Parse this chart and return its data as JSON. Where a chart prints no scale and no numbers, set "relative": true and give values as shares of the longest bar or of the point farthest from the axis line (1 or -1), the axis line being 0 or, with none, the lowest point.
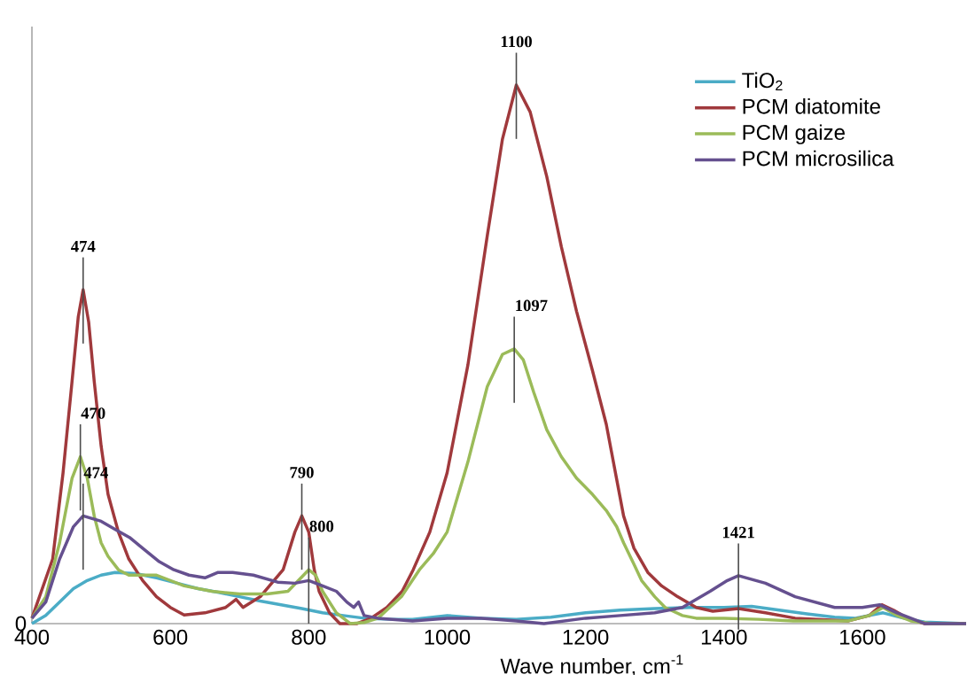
{
  "chart_data": {
    "type": "line",
    "relative": true,
    "xlabel": "Wave number, cm$^{-1}$",
    "xlim": [
      400,
      1750
    ],
    "xticks": [
      400,
      600,
      800,
      1000,
      1200,
      1400,
      1600
    ],
    "legend": "top right",
    "series": [
      {
        "name": "TiO$_{2}$",
        "color": "#4bacc6",
        "x": [
          400,
          420,
          440,
          460,
          480,
          500,
          520,
          550,
          580,
          610,
          640,
          670,
          700,
          730,
          760,
          790,
          820,
          850,
          880,
          920,
          950,
          1000,
          1050,
          1100,
          1150,
          1200,
          1250,
          1300,
          1350,
          1400,
          1440,
          1480,
          1520,
          1560,
          1590,
          1630,
          1660,
          1690,
          1750
        ],
        "values": [
          0,
          0.015,
          0.04,
          0.065,
          0.08,
          0.09,
          0.095,
          0.093,
          0.085,
          0.075,
          0.065,
          0.058,
          0.05,
          0.042,
          0.035,
          0.028,
          0.02,
          0.015,
          0.01,
          0.008,
          0.008,
          0.015,
          0.01,
          0.008,
          0.012,
          0.02,
          0.025,
          0.028,
          0.03,
          0.03,
          0.032,
          0.025,
          0.018,
          0.012,
          0.01,
          0.02,
          0.01,
          0.003,
          0
        ]
      },
      {
        "name": "PCM diatomite",
        "color": "#a0393c",
        "x": [
          400,
          430,
          445,
          458,
          467,
          474,
          482,
          490,
          500,
          510,
          525,
          540,
          560,
          580,
          600,
          620,
          650,
          680,
          695,
          705,
          730,
          763,
          780,
          790,
          800,
          808,
          815,
          830,
          845,
          870,
          890,
          913,
          935,
          951,
          975,
          1000,
          1030,
          1058,
          1080,
          1100,
          1120,
          1144,
          1165,
          1187,
          1210,
          1230,
          1255,
          1270,
          1290,
          1310,
          1333,
          1360,
          1384,
          1421,
          1460,
          1503,
          1580,
          1610,
          1628,
          1645,
          1665,
          1690,
          1750
        ],
        "values": [
          0.01,
          0.12,
          0.28,
          0.45,
          0.57,
          0.62,
          0.56,
          0.45,
          0.33,
          0.24,
          0.17,
          0.12,
          0.08,
          0.05,
          0.03,
          0.016,
          0.02,
          0.03,
          0.045,
          0.03,
          0.05,
          0.1,
          0.17,
          0.2,
          0.17,
          0.1,
          0.06,
          0.02,
          0,
          0,
          0.01,
          0.03,
          0.06,
          0.1,
          0.17,
          0.28,
          0.48,
          0.72,
          0.9,
          1,
          0.95,
          0.83,
          0.7,
          0.58,
          0.47,
          0.37,
          0.2,
          0.14,
          0.095,
          0.07,
          0.05,
          0.03,
          0.023,
          0.028,
          0.02,
          0.01,
          0.005,
          0.015,
          0.035,
          0.025,
          0.01,
          0,
          0
        ]
      },
      {
        "name": "PCM gaize",
        "color": "#9bbb59",
        "x": [
          400,
          420,
          440,
          458,
          470,
          480,
          490,
          500,
          510,
          525,
          540,
          580,
          620,
          660,
          700,
          740,
          770,
          785,
          800,
          810,
          820,
          840,
          860,
          880,
          900,
          934,
          960,
          980,
          1000,
          1030,
          1058,
          1080,
          1097,
          1110,
          1125,
          1144,
          1165,
          1187,
          1210,
          1230,
          1245,
          1255,
          1270,
          1281,
          1300,
          1315,
          1340,
          1360,
          1400,
          1450,
          1500,
          1580,
          1610,
          1630,
          1650,
          1670,
          1700,
          1750
        ],
        "values": [
          0.01,
          0.05,
          0.15,
          0.27,
          0.31,
          0.27,
          0.2,
          0.15,
          0.125,
          0.1,
          0.09,
          0.09,
          0.07,
          0.06,
          0.055,
          0.055,
          0.06,
          0.08,
          0.1,
          0.09,
          0.06,
          0.02,
          0,
          0.002,
          0.01,
          0.05,
          0.1,
          0.13,
          0.17,
          0.3,
          0.44,
          0.5,
          0.51,
          0.49,
          0.43,
          0.36,
          0.31,
          0.27,
          0.24,
          0.21,
          0.18,
          0.15,
          0.11,
          0.08,
          0.05,
          0.03,
          0.015,
          0.01,
          0.01,
          0.008,
          0.005,
          0.005,
          0.015,
          0.03,
          0.015,
          0.005,
          0,
          0
        ]
      },
      {
        "name": "PCM microsilica",
        "color": "#65508f",
        "x": [
          400,
          420,
          440,
          460,
          474,
          500,
          520,
          541,
          560,
          584,
          605,
          627,
          650,
          669,
          690,
          720,
          755,
          780,
          800,
          820,
          840,
          855,
          865,
          872,
          880,
          900,
          950,
          1000,
          1050,
          1100,
          1140,
          1200,
          1250,
          1300,
          1340,
          1380,
          1405,
          1421,
          1460,
          1503,
          1560,
          1600,
          1625,
          1650,
          1690,
          1750
        ],
        "values": [
          0.01,
          0.04,
          0.12,
          0.18,
          0.2,
          0.19,
          0.175,
          0.16,
          0.14,
          0.115,
          0.1,
          0.09,
          0.085,
          0.095,
          0.095,
          0.09,
          0.077,
          0.075,
          0.08,
          0.07,
          0.06,
          0.04,
          0.03,
          0.04,
          0.015,
          0.01,
          0.005,
          0.01,
          0.01,
          0.005,
          0,
          0.01,
          0.015,
          0.02,
          0.03,
          0.06,
          0.08,
          0.089,
          0.075,
          0.05,
          0.03,
          0.03,
          0.035,
          0.02,
          0,
          0
        ]
      }
    ],
    "annotations": [
      {
        "text": "470",
        "x": 470,
        "y": 0.31
      },
      {
        "text": "474",
        "x": 474,
        "y": 0.62
      },
      {
        "text": "474",
        "x": 474,
        "y": 0.2
      },
      {
        "text": "790",
        "x": 790,
        "y": 0.2
      },
      {
        "text": "800",
        "x": 800,
        "y": 0.1
      },
      {
        "text": "1100",
        "x": 1100,
        "y": 1
      },
      {
        "text": "1097",
        "x": 1097,
        "y": 0.51
      },
      {
        "text": "1421",
        "x": 1421,
        "y": 0.089
      },
      "0"
    ]
  }
}
